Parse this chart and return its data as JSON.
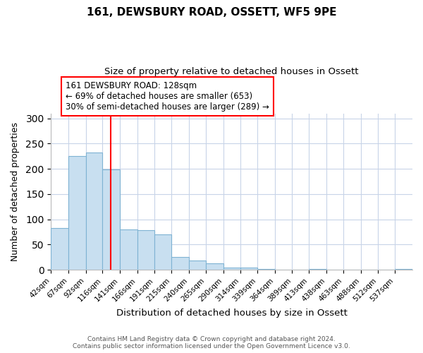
{
  "title1": "161, DEWSBURY ROAD, OSSETT, WF5 9PE",
  "title2": "Size of property relative to detached houses in Ossett",
  "xlabel": "Distribution of detached houses by size in Ossett",
  "ylabel": "Number of detached properties",
  "bin_labels": [
    "42sqm",
    "67sqm",
    "92sqm",
    "116sqm",
    "141sqm",
    "166sqm",
    "191sqm",
    "215sqm",
    "240sqm",
    "265sqm",
    "290sqm",
    "314sqm",
    "339sqm",
    "364sqm",
    "389sqm",
    "413sqm",
    "438sqm",
    "463sqm",
    "488sqm",
    "512sqm",
    "537sqm"
  ],
  "bin_edges": [
    42,
    67,
    92,
    116,
    141,
    166,
    191,
    215,
    240,
    265,
    290,
    314,
    339,
    364,
    389,
    413,
    438,
    463,
    488,
    512,
    537,
    562
  ],
  "bar_heights": [
    82,
    226,
    233,
    199,
    80,
    79,
    70,
    26,
    19,
    13,
    4,
    4,
    1,
    0,
    0,
    1,
    0,
    0,
    0,
    0,
    1
  ],
  "bar_color": "#c8dff0",
  "bar_edge_color": "#7fb3d3",
  "red_line_x": 128,
  "annotation_line1": "161 DEWSBURY ROAD: 128sqm",
  "annotation_line2": "← 69% of detached houses are smaller (653)",
  "annotation_line3": "30% of semi-detached houses are larger (289) →",
  "ylim": [
    0,
    310
  ],
  "yticks": [
    0,
    50,
    100,
    150,
    200,
    250,
    300
  ],
  "footer1": "Contains HM Land Registry data © Crown copyright and database right 2024.",
  "footer2": "Contains public sector information licensed under the Open Government Licence v3.0.",
  "bg_color": "#ffffff",
  "grid_color": "#c8d4e8"
}
